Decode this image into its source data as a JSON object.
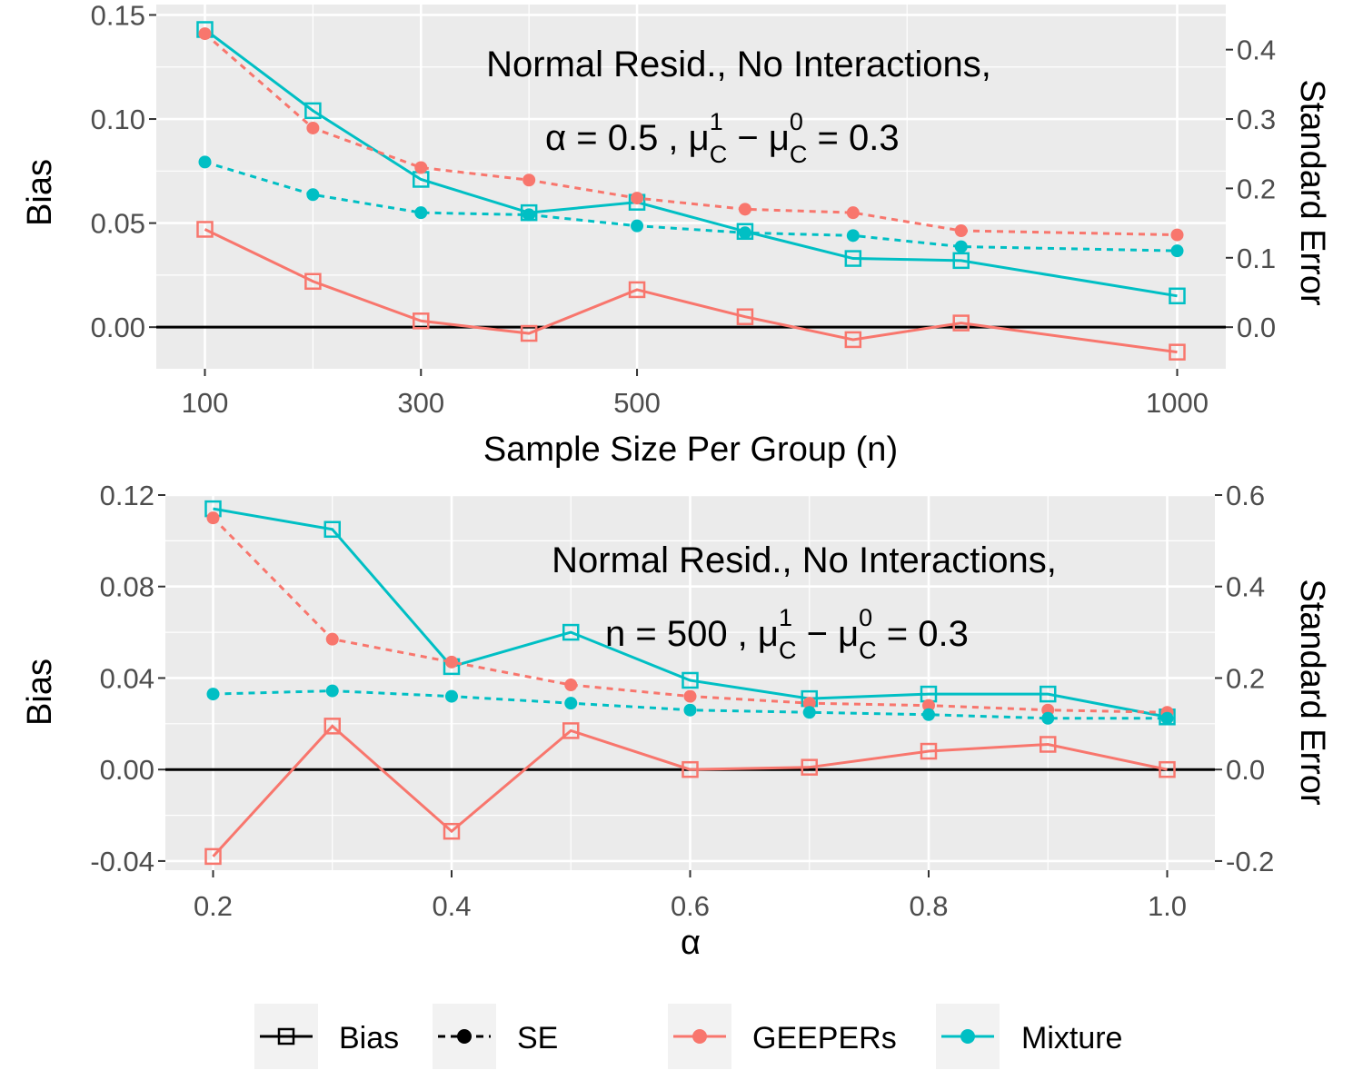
{
  "colors": {
    "geepers": "#F8766D",
    "mixture": "#00BFC4",
    "panel_bg": "#EBEBEB",
    "grid": "#FFFFFF"
  },
  "legend": {
    "linetype": [
      {
        "label": "Bias",
        "style": "solid",
        "marker": "square"
      },
      {
        "label": "SE",
        "style": "dashed",
        "marker": "circle"
      }
    ],
    "method": [
      {
        "label": "GEEPERs",
        "color": "#F8766D"
      },
      {
        "label": "Mixture",
        "color": "#00BFC4"
      }
    ]
  },
  "chart_data": [
    {
      "type": "line",
      "title_line1": "Normal Resid., No Interactions,",
      "title_line2": "α = 0.5 ,  μ",
      "xlabel": "Sample Size Per Group (n)",
      "ylabel_left": "Bias",
      "ylabel_right": "Standard Error",
      "x": [
        100,
        200,
        300,
        400,
        500,
        600,
        700,
        800,
        1000
      ],
      "x_ticks": [
        100,
        300,
        500,
        1000
      ],
      "x_tick_labels": [
        "100",
        "300",
        "500",
        "1000"
      ],
      "xlim": [
        55,
        1045
      ],
      "ylim_left": [
        -0.02,
        0.155
      ],
      "y_ticks_left": [
        "0.00",
        "0.05",
        "0.10",
        "0.15"
      ],
      "y_ticks_right": [
        "0.0",
        "0.1",
        "0.2",
        "0.3",
        "0.4"
      ],
      "se_scale": 3,
      "series": [
        {
          "name": "GEEPERs",
          "measure": "Bias",
          "values": [
            0.047,
            0.022,
            0.003,
            -0.003,
            0.018,
            0.005,
            -0.006,
            0.002,
            -0.012
          ]
        },
        {
          "name": "Mixture",
          "measure": "Bias",
          "values": [
            0.143,
            0.104,
            0.071,
            0.055,
            0.06,
            0.046,
            0.033,
            0.032,
            0.015
          ]
        },
        {
          "name": "GEEPERs",
          "measure": "SE",
          "values": [
            0.423,
            0.287,
            0.23,
            0.212,
            0.186,
            0.17,
            0.165,
            0.139,
            0.133
          ]
        },
        {
          "name": "Mixture",
          "measure": "SE",
          "values": [
            0.238,
            0.191,
            0.165,
            0.162,
            0.146,
            0.136,
            0.132,
            0.116,
            0.11
          ]
        }
      ]
    },
    {
      "type": "line",
      "title_line1": "Normal Resid., No Interactions,",
      "title_line2": "n = 500 ,  μ",
      "xlabel": "α",
      "ylabel_left": "Bias",
      "ylabel_right": "Standard Error",
      "x": [
        0.2,
        0.3,
        0.4,
        0.5,
        0.6,
        0.7,
        0.8,
        0.9,
        1.0
      ],
      "x_ticks": [
        0.2,
        0.4,
        0.6,
        0.8,
        1.0
      ],
      "x_tick_labels": [
        "0.2",
        "0.4",
        "0.6",
        "0.8",
        "1.0"
      ],
      "xlim": [
        0.16,
        1.04
      ],
      "ylim_left": [
        -0.044,
        0.12
      ],
      "y_ticks_left": [
        "-0.04",
        "0.00",
        "0.04",
        "0.08",
        "0.12"
      ],
      "y_ticks_right": [
        "-0.2",
        "0.0",
        "0.2",
        "0.4",
        "0.6"
      ],
      "se_scale": 5,
      "series": [
        {
          "name": "GEEPERs",
          "measure": "Bias",
          "values": [
            -0.038,
            0.019,
            -0.027,
            0.017,
            0.0,
            0.001,
            0.008,
            0.011,
            0.0
          ]
        },
        {
          "name": "Mixture",
          "measure": "Bias",
          "values": [
            0.114,
            0.105,
            0.045,
            0.06,
            0.039,
            0.031,
            0.033,
            0.033,
            0.023
          ]
        },
        {
          "name": "GEEPERs",
          "measure": "SE",
          "values": [
            0.55,
            0.285,
            0.235,
            0.185,
            0.16,
            0.145,
            0.14,
            0.13,
            0.125
          ]
        },
        {
          "name": "Mixture",
          "measure": "SE",
          "values": [
            0.165,
            0.172,
            0.16,
            0.145,
            0.13,
            0.125,
            0.12,
            0.112,
            0.112
          ]
        }
      ]
    }
  ]
}
